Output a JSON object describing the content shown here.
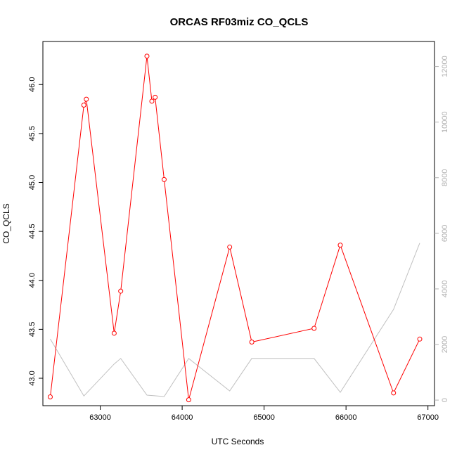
{
  "chart_data": {
    "type": "line",
    "title": "ORCAS RF03miz CO_QCLS",
    "xlabel": "UTC Seconds",
    "ylabel": "CO_QCLS",
    "xlim": [
      62300,
      67080
    ],
    "ylim": [
      42.72,
      46.44
    ],
    "y2lim": [
      -200,
      12900
    ],
    "x_ticks": [
      63000,
      64000,
      65000,
      66000,
      67000
    ],
    "y_ticks": [
      43.0,
      43.5,
      44.0,
      44.5,
      45.0,
      45.5,
      46.0
    ],
    "y2_ticks": [
      0,
      2000,
      4000,
      6000,
      8000,
      10000,
      12000
    ],
    "x_tick_labels": [
      "63000",
      "64000",
      "65000",
      "66000",
      "67000"
    ],
    "y_tick_labels": [
      "43.0",
      "43.5",
      "44.0",
      "44.5",
      "45.0",
      "45.5",
      "46.0"
    ],
    "y2_tick_labels": [
      "0",
      "2000",
      "4000",
      "6000",
      "8000",
      "10000",
      "12000"
    ],
    "series": [
      {
        "axis": "left",
        "color": "#ff0000",
        "markers": true,
        "x": [
          62390,
          62800,
          62830,
          63170,
          63250,
          63570,
          63630,
          63670,
          63780,
          64080,
          64580,
          64850,
          65610,
          65930,
          66580,
          66900
        ],
        "y": [
          42.81,
          45.79,
          45.85,
          43.46,
          43.89,
          46.29,
          45.83,
          45.87,
          45.03,
          42.78,
          44.34,
          43.37,
          43.51,
          44.36,
          42.85,
          43.4
        ]
      },
      {
        "axis": "right",
        "color": "#c0c0c0",
        "markers": false,
        "x": [
          62390,
          62800,
          63170,
          63250,
          63570,
          63780,
          64080,
          64580,
          64850,
          65610,
          65930,
          66580,
          66900
        ],
        "y": [
          2200,
          150,
          1300,
          1500,
          180,
          130,
          1500,
          330,
          1500,
          1500,
          280,
          3260,
          5650
        ]
      }
    ]
  }
}
